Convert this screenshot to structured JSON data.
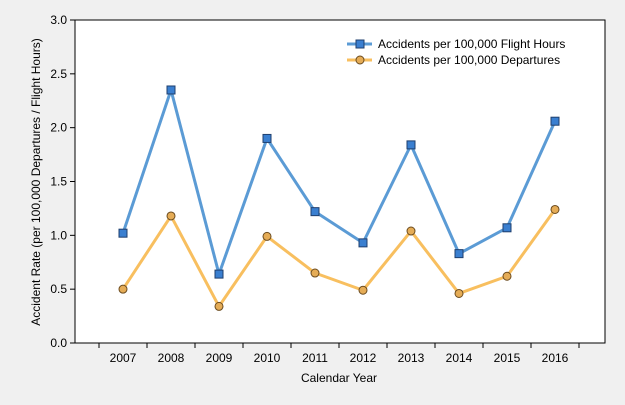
{
  "chart_data": {
    "type": "line",
    "title": "",
    "xlabel": "Calendar Year",
    "ylabel": "Accident Rate (per 100,000 Departures / Flight Hours)",
    "categories": [
      "2007",
      "2008",
      "2009",
      "2010",
      "2011",
      "2012",
      "2013",
      "2014",
      "2015",
      "2016"
    ],
    "ylim": [
      0,
      3.0
    ],
    "yticks": [
      "0.0",
      "0.5",
      "1.0",
      "1.5",
      "2.0",
      "2.5",
      "3.0"
    ],
    "grid": false,
    "legend_position": "top-right",
    "series": [
      {
        "name": "Accidents per 100,000 Flight Hours",
        "color": "#5b9bd5",
        "marker": "square",
        "marker_color": "#3a7fd0",
        "values": [
          1.02,
          2.35,
          0.64,
          1.9,
          1.22,
          0.93,
          1.84,
          0.83,
          1.07,
          2.06
        ]
      },
      {
        "name": "Accidents per 100,000 Departures",
        "color": "#f8bf5f",
        "marker": "circle",
        "marker_color": "#e5ac56",
        "values": [
          0.5,
          1.18,
          0.34,
          0.99,
          0.65,
          0.49,
          1.04,
          0.46,
          0.62,
          1.24
        ]
      }
    ]
  }
}
